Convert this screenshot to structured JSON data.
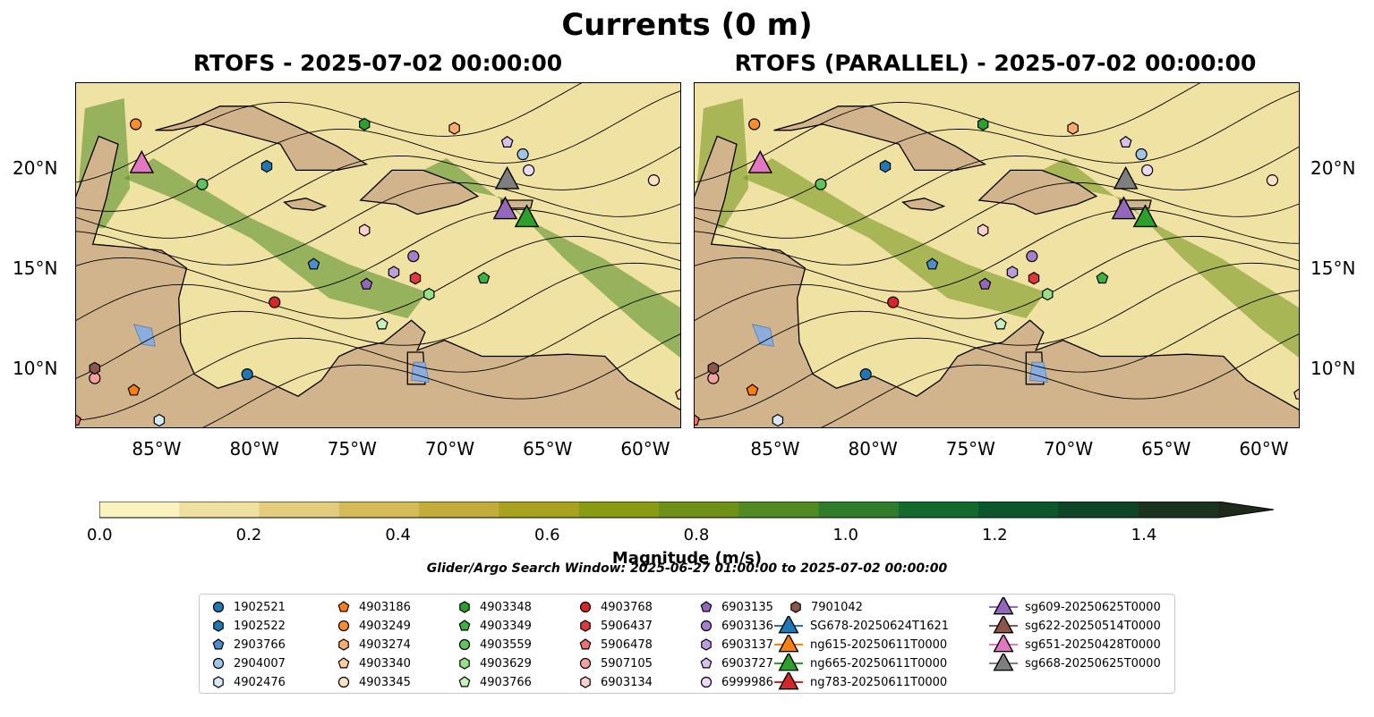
{
  "title": "Currents (0 m)",
  "panels": [
    {
      "title": "RTOFS - 2025-07-02 00:00:00"
    },
    {
      "title": "RTOFS (PARALLEL) - 2025-07-02 00:00:00"
    }
  ],
  "chart_data": {
    "type": "heatmap",
    "x_ticks": [
      "85°W",
      "80°W",
      "75°W",
      "70°W",
      "65°W",
      "60°W"
    ],
    "y_ticks": [
      "20°N",
      "15°N",
      "10°N"
    ],
    "xlim": [
      -89,
      -58
    ],
    "ylim": [
      7,
      24.3
    ],
    "colorbar": {
      "label": "Magnitude (m/s)",
      "ticks": [
        "0.0",
        "0.2",
        "0.4",
        "0.6",
        "0.8",
        "1.0",
        "1.2",
        "1.4"
      ],
      "range": [
        0,
        1.5
      ],
      "extend": "max",
      "colors": [
        "#faf3c0",
        "#efe0a0",
        "#e3cc7c",
        "#d5bb58",
        "#c2ad3a",
        "#a9a21f",
        "#8a9a12",
        "#6e9118",
        "#4f8a22",
        "#2f7d2a",
        "#13692e",
        "#0b562b",
        "#0e4526",
        "#1a3420",
        "#1d2a19"
      ]
    },
    "search_window": "Glider/Argo Search Window: 2025-06-27 01:00:00 to 2025-07-02 00:00:00",
    "legend": [
      {
        "label": "1902521",
        "marker": "circle",
        "color": "#1f77b4"
      },
      {
        "label": "1902522",
        "marker": "hexagon",
        "color": "#1f77b4"
      },
      {
        "label": "2903766",
        "marker": "pentagon",
        "color": "#4c8ecb"
      },
      {
        "label": "2904007",
        "marker": "circle",
        "color": "#9ec5e8"
      },
      {
        "label": "4902476",
        "marker": "hexagon",
        "color": "#d6e9f7"
      },
      {
        "label": "4903186",
        "marker": "pentagon",
        "color": "#ff7f0e"
      },
      {
        "label": "4903249",
        "marker": "circle",
        "color": "#ff8c2e"
      },
      {
        "label": "4903274",
        "marker": "hexagon",
        "color": "#ffad6f"
      },
      {
        "label": "4903340",
        "marker": "pentagon",
        "color": "#ffcf9c"
      },
      {
        "label": "4903345",
        "marker": "circle",
        "color": "#ffe1c6"
      },
      {
        "label": "4903348",
        "marker": "hexagon",
        "color": "#2ca02c"
      },
      {
        "label": "4903349",
        "marker": "pentagon",
        "color": "#3cb43c"
      },
      {
        "label": "4903559",
        "marker": "circle",
        "color": "#5fc45f"
      },
      {
        "label": "4903629",
        "marker": "hexagon",
        "color": "#98df8a"
      },
      {
        "label": "4903766",
        "marker": "pentagon",
        "color": "#c7f0c0"
      },
      {
        "label": "4903768",
        "marker": "circle",
        "color": "#d62728"
      },
      {
        "label": "5906437",
        "marker": "hexagon",
        "color": "#e0393a"
      },
      {
        "label": "5906478",
        "marker": "pentagon",
        "color": "#f07070"
      },
      {
        "label": "5907105",
        "marker": "circle",
        "color": "#f7a0a0"
      },
      {
        "label": "6903134",
        "marker": "hexagon",
        "color": "#fcd0d0"
      },
      {
        "label": "6903135",
        "marker": "pentagon",
        "color": "#9467bd"
      },
      {
        "label": "6903136",
        "marker": "circle",
        "color": "#a57fcc"
      },
      {
        "label": "6903137",
        "marker": "hexagon",
        "color": "#bb9ee0"
      },
      {
        "label": "6903727",
        "marker": "pentagon",
        "color": "#d8c3ef"
      },
      {
        "label": "6999986",
        "marker": "circle",
        "color": "#ead9fa"
      },
      {
        "label": "7901042",
        "marker": "hexagon",
        "color": "#8c564b"
      },
      {
        "label": "SG678-20250624T1621",
        "marker": "triangle",
        "color": "#1f77b4"
      },
      {
        "label": "ng615-20250611T0000",
        "marker": "triangle",
        "color": "#ff7f0e"
      },
      {
        "label": "ng665-20250611T0000",
        "marker": "triangle",
        "color": "#2ca02c"
      },
      {
        "label": "ng783-20250611T0000",
        "marker": "triangle",
        "color": "#d62728"
      },
      {
        "label": "sg609-20250625T0000",
        "marker": "triangle",
        "color": "#9467bd"
      },
      {
        "label": "sg622-20250514T0000",
        "marker": "triangle",
        "color": "#8c564b"
      },
      {
        "label": "sg651-20250428T0000",
        "marker": "triangle",
        "color": "#e377c2"
      },
      {
        "label": "sg668-20250625T0000",
        "marker": "triangle",
        "color": "#7f7f7f"
      }
    ],
    "observations": [
      {
        "id": "1902521",
        "lon": -80.2,
        "lat": 9.7
      },
      {
        "id": "1902522",
        "lon": -79.2,
        "lat": 20.1
      },
      {
        "id": "2903766",
        "lon": -76.8,
        "lat": 15.2
      },
      {
        "id": "2904007",
        "lon": -66.1,
        "lat": 20.7
      },
      {
        "id": "4902476",
        "lon": -84.7,
        "lat": 7.4
      },
      {
        "id": "4903186",
        "lon": -86.0,
        "lat": 8.9
      },
      {
        "id": "4903249",
        "lon": -85.9,
        "lat": 22.2
      },
      {
        "id": "4903274",
        "lon": -69.6,
        "lat": 22.0
      },
      {
        "id": "4903340",
        "lon": -58.0,
        "lat": 8.7
      },
      {
        "id": "4903345",
        "lon": -59.4,
        "lat": 19.4
      },
      {
        "id": "4903348",
        "lon": -74.2,
        "lat": 22.2
      },
      {
        "id": "4903349",
        "lon": -68.1,
        "lat": 14.5
      },
      {
        "id": "4903559",
        "lon": -82.5,
        "lat": 19.2
      },
      {
        "id": "4903629",
        "lon": -70.9,
        "lat": 13.7
      },
      {
        "id": "4903766",
        "lon": -73.3,
        "lat": 12.2
      },
      {
        "id": "4903768",
        "lon": -78.8,
        "lat": 13.3
      },
      {
        "id": "5906437",
        "lon": -71.6,
        "lat": 14.5
      },
      {
        "id": "5906478",
        "lon": -89.0,
        "lat": 7.4
      },
      {
        "id": "5907105",
        "lon": -88.0,
        "lat": 9.5
      },
      {
        "id": "6903134",
        "lon": -74.2,
        "lat": 16.9
      },
      {
        "id": "6903135",
        "lon": -74.1,
        "lat": 14.2
      },
      {
        "id": "6903136",
        "lon": -71.7,
        "lat": 15.6
      },
      {
        "id": "6903137",
        "lon": -72.7,
        "lat": 14.8
      },
      {
        "id": "6903727",
        "lon": -66.9,
        "lat": 21.3
      },
      {
        "id": "6999986",
        "lon": -65.8,
        "lat": 19.9
      },
      {
        "id": "7901042",
        "lon": -88.0,
        "lat": 10.0
      },
      {
        "id": "sg651-20250428T0000",
        "lon": -85.6,
        "lat": 20.2
      },
      {
        "id": "sg668-20250625T0000",
        "lon": -66.9,
        "lat": 19.4
      },
      {
        "id": "sg609-20250625T0000",
        "lon": -67.0,
        "lat": 17.9
      },
      {
        "id": "ng665-20250611T0000",
        "lon": -65.9,
        "lat": 17.5
      }
    ]
  }
}
